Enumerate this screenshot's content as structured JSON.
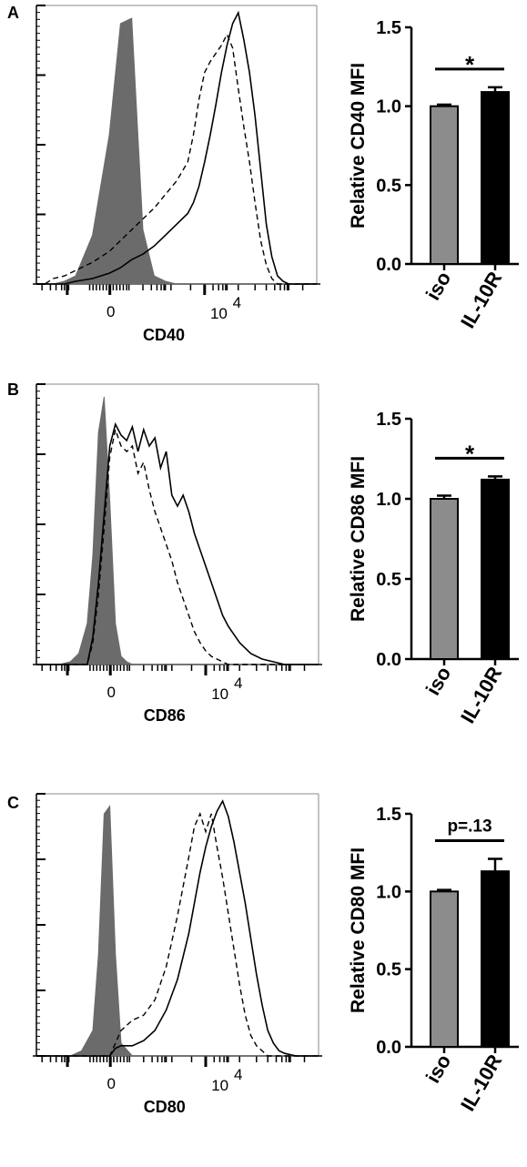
{
  "colors": {
    "isotype_fill": "#6b6b6b",
    "iso_bar": "#8c8c8c",
    "il10r_bar": "#000000",
    "solid_line": "#000000",
    "dashed_line": "#000000"
  },
  "chart_data": [
    {
      "panel": "A",
      "type": "histogram",
      "xlabel": "CD40",
      "tick_labels": [
        "0",
        "10",
        "4"
      ],
      "x": [
        0.0,
        0.03,
        0.06,
        0.1,
        0.14,
        0.2,
        0.26,
        0.3,
        0.34,
        0.38,
        0.42,
        0.46,
        0.5,
        0.54,
        0.56,
        0.58,
        0.6,
        0.62,
        0.64,
        0.66,
        0.68,
        0.7,
        0.72,
        0.74,
        0.76,
        0.78,
        0.8,
        0.82,
        0.84,
        0.86,
        0.88,
        0.9,
        0.92,
        0.96,
        1.0
      ],
      "series": [
        {
          "style": "filled",
          "values": [
            0,
            0,
            0,
            0.01,
            0.03,
            0.18,
            0.55,
            0.96,
            0.98,
            0.2,
            0.03,
            0.01,
            0,
            0,
            0,
            0,
            0,
            0,
            0,
            0,
            0,
            0,
            0,
            0,
            0,
            0,
            0,
            0,
            0,
            0,
            0,
            0,
            0,
            0,
            0
          ]
        },
        {
          "style": "solid",
          "values": [
            0,
            0,
            0,
            0,
            0.01,
            0.02,
            0.04,
            0.06,
            0.09,
            0.11,
            0.14,
            0.18,
            0.22,
            0.26,
            0.3,
            0.36,
            0.45,
            0.55,
            0.66,
            0.78,
            0.88,
            0.96,
            1.0,
            0.9,
            0.78,
            0.62,
            0.42,
            0.22,
            0.1,
            0.03,
            0.01,
            0,
            0,
            0,
            0
          ]
        },
        {
          "style": "dashed",
          "values": [
            0,
            0,
            0.02,
            0.03,
            0.05,
            0.08,
            0.12,
            0.16,
            0.2,
            0.24,
            0.28,
            0.33,
            0.38,
            0.45,
            0.55,
            0.68,
            0.78,
            0.82,
            0.85,
            0.88,
            0.92,
            0.87,
            0.72,
            0.58,
            0.45,
            0.3,
            0.16,
            0.07,
            0.02,
            0,
            0,
            0,
            0,
            0,
            0
          ]
        }
      ]
    },
    {
      "panel": "A",
      "type": "bar",
      "ylabel": "Relative CD40 MFI",
      "ylim": [
        0,
        1.5
      ],
      "yticks": [
        "0.0",
        "0.5",
        "1.0",
        "1.5"
      ],
      "categories": [
        "iso",
        "IL-10R"
      ],
      "values": [
        1.0,
        1.09
      ],
      "errors": [
        0.01,
        0.03
      ],
      "annotation": "*"
    },
    {
      "panel": "B",
      "type": "histogram",
      "xlabel": "CD86",
      "tick_labels": [
        "0",
        "10",
        "4"
      ],
      "x": [
        0.0,
        0.04,
        0.08,
        0.12,
        0.15,
        0.18,
        0.2,
        0.22,
        0.24,
        0.26,
        0.28,
        0.3,
        0.32,
        0.34,
        0.36,
        0.38,
        0.4,
        0.42,
        0.44,
        0.46,
        0.48,
        0.5,
        0.52,
        0.54,
        0.56,
        0.58,
        0.6,
        0.62,
        0.64,
        0.66,
        0.68,
        0.72,
        0.76,
        0.8,
        0.84,
        0.88,
        0.92,
        0.96,
        1.0
      ],
      "series": [
        {
          "style": "filled",
          "values": [
            0,
            0,
            0,
            0.01,
            0.04,
            0.15,
            0.4,
            0.85,
            0.98,
            0.6,
            0.15,
            0.03,
            0.01,
            0,
            0,
            0,
            0,
            0,
            0,
            0,
            0,
            0,
            0,
            0,
            0,
            0,
            0,
            0,
            0,
            0,
            0,
            0,
            0,
            0,
            0,
            0,
            0,
            0,
            0
          ]
        },
        {
          "style": "solid",
          "values": [
            0,
            0,
            0,
            0,
            0,
            0,
            0.1,
            0.3,
            0.55,
            0.8,
            0.88,
            0.84,
            0.82,
            0.87,
            0.78,
            0.86,
            0.8,
            0.83,
            0.72,
            0.78,
            0.62,
            0.58,
            0.62,
            0.56,
            0.48,
            0.42,
            0.36,
            0.3,
            0.24,
            0.18,
            0.14,
            0.08,
            0.04,
            0.02,
            0.01,
            0,
            0,
            0,
            0
          ]
        },
        {
          "style": "dashed",
          "values": [
            0,
            0,
            0,
            0,
            0,
            0,
            0.08,
            0.26,
            0.5,
            0.76,
            0.86,
            0.8,
            0.78,
            0.8,
            0.7,
            0.74,
            0.64,
            0.56,
            0.5,
            0.44,
            0.38,
            0.3,
            0.24,
            0.18,
            0.12,
            0.08,
            0.05,
            0.03,
            0.02,
            0.01,
            0,
            0,
            0,
            0,
            0,
            0,
            0,
            0,
            0
          ]
        }
      ]
    },
    {
      "panel": "B",
      "type": "bar",
      "ylabel": "Relative CD86 MFI",
      "ylim": [
        0,
        1.5
      ],
      "yticks": [
        "0.0",
        "0.5",
        "1.0",
        "1.5"
      ],
      "categories": [
        "iso",
        "IL-10R"
      ],
      "values": [
        1.0,
        1.12
      ],
      "errors": [
        0.02,
        0.02
      ],
      "annotation": "*"
    },
    {
      "panel": "C",
      "type": "histogram",
      "xlabel": "CD80",
      "tick_labels": [
        "0",
        "10",
        "4"
      ],
      "x": [
        0.0,
        0.04,
        0.08,
        0.12,
        0.16,
        0.2,
        0.22,
        0.24,
        0.26,
        0.28,
        0.3,
        0.34,
        0.38,
        0.42,
        0.46,
        0.5,
        0.54,
        0.56,
        0.58,
        0.6,
        0.62,
        0.64,
        0.66,
        0.68,
        0.7,
        0.72,
        0.74,
        0.76,
        0.78,
        0.8,
        0.82,
        0.84,
        0.86,
        0.88,
        0.92,
        0.96,
        1.0
      ],
      "series": [
        {
          "style": "filled",
          "values": [
            0,
            0,
            0,
            0,
            0.02,
            0.1,
            0.4,
            0.95,
            0.98,
            0.4,
            0.05,
            0,
            0,
            0,
            0,
            0,
            0,
            0,
            0,
            0,
            0,
            0,
            0,
            0,
            0,
            0,
            0,
            0,
            0,
            0,
            0,
            0,
            0,
            0,
            0,
            0,
            0
          ]
        },
        {
          "style": "solid",
          "values": [
            0,
            0,
            0,
            0,
            0,
            0,
            0,
            0,
            0,
            0.03,
            0.04,
            0.04,
            0.06,
            0.1,
            0.18,
            0.3,
            0.48,
            0.6,
            0.72,
            0.82,
            0.9,
            0.96,
            1.0,
            0.94,
            0.84,
            0.72,
            0.6,
            0.46,
            0.32,
            0.2,
            0.1,
            0.05,
            0.02,
            0.01,
            0,
            0,
            0
          ]
        },
        {
          "style": "dashed",
          "values": [
            0,
            0,
            0,
            0,
            0,
            0,
            0,
            0,
            0,
            0.05,
            0.1,
            0.14,
            0.16,
            0.22,
            0.35,
            0.55,
            0.78,
            0.9,
            0.95,
            0.88,
            0.95,
            0.82,
            0.7,
            0.56,
            0.42,
            0.28,
            0.16,
            0.08,
            0.04,
            0.02,
            0,
            0,
            0,
            0,
            0,
            0,
            0
          ]
        }
      ]
    },
    {
      "panel": "C",
      "type": "bar",
      "ylabel": "Relative CD80 MFI",
      "ylim": [
        0,
        1.5
      ],
      "yticks": [
        "0.0",
        "0.5",
        "1.0",
        "1.5"
      ],
      "categories": [
        "iso",
        "IL-10R"
      ],
      "values": [
        1.0,
        1.13
      ],
      "errors": [
        0.01,
        0.08
      ],
      "annotation": "p=.13"
    }
  ]
}
